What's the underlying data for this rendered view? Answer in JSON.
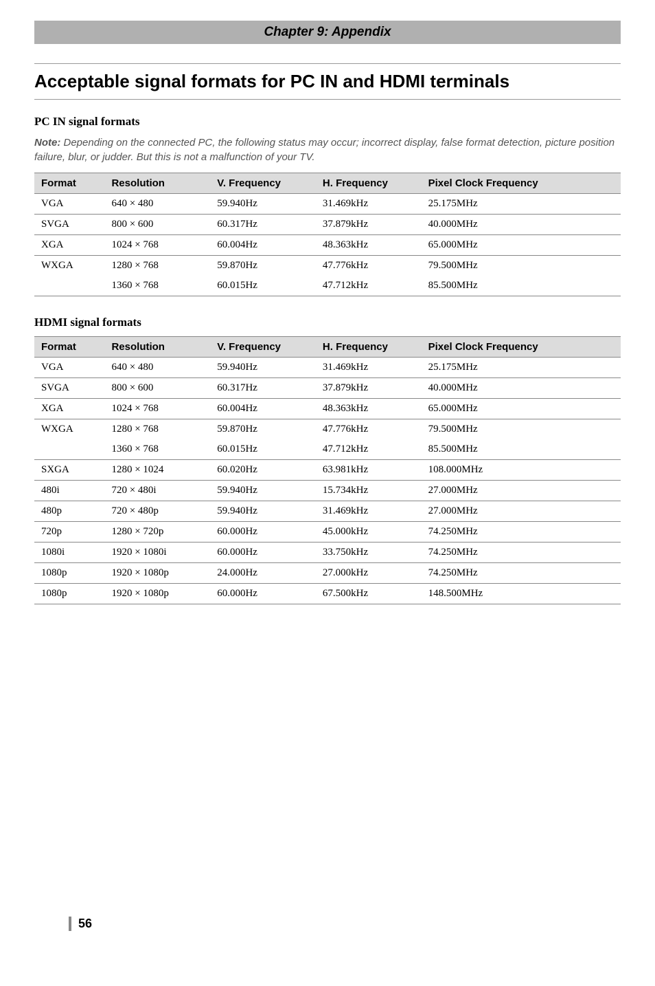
{
  "chapter": "Chapter 9: Appendix",
  "title": "Acceptable signal formats for PC IN and HDMI terminals",
  "pcin": {
    "heading": "PC IN signal formats",
    "note_label": "Note:",
    "note_text": " Depending on the connected PC, the following status may occur; incorrect display, false format detection, picture position failure, blur, or judder. But this is not a malfunction of your TV.",
    "cols": {
      "format": "Format",
      "res": "Resolution",
      "vf": "V. Frequency",
      "hf": "H. Frequency",
      "pcf": "Pixel Clock Frequency"
    },
    "rows": [
      {
        "format": "VGA",
        "res": "640 × 480",
        "vf": "59.940Hz",
        "hf": "31.469kHz",
        "pcf": "25.175MHz"
      },
      {
        "format": "SVGA",
        "res": "800 × 600",
        "vf": "60.317Hz",
        "hf": "37.879kHz",
        "pcf": "40.000MHz"
      },
      {
        "format": "XGA",
        "res": "1024 × 768",
        "vf": "60.004Hz",
        "hf": "48.363kHz",
        "pcf": "65.000MHz"
      },
      {
        "format": "WXGA",
        "res": "1280 × 768",
        "vf": "59.870Hz",
        "hf": "47.776kHz",
        "pcf": "79.500MHz"
      },
      {
        "format": "",
        "res": "1360 × 768",
        "vf": "60.015Hz",
        "hf": "47.712kHz",
        "pcf": "85.500MHz"
      }
    ]
  },
  "hdmi": {
    "heading": "HDMI signal formats",
    "cols": {
      "format": "Format",
      "res": "Resolution",
      "vf": "V. Frequency",
      "hf": "H. Frequency",
      "pcf": "Pixel Clock Frequency"
    },
    "rows": [
      {
        "format": "VGA",
        "res": "640 × 480",
        "vf": "59.940Hz",
        "hf": "31.469kHz",
        "pcf": "25.175MHz"
      },
      {
        "format": "SVGA",
        "res": "800 × 600",
        "vf": "60.317Hz",
        "hf": "37.879kHz",
        "pcf": "40.000MHz"
      },
      {
        "format": "XGA",
        "res": "1024 × 768",
        "vf": "60.004Hz",
        "hf": "48.363kHz",
        "pcf": "65.000MHz"
      },
      {
        "format": "WXGA",
        "res": "1280 × 768",
        "vf": "59.870Hz",
        "hf": "47.776kHz",
        "pcf": "79.500MHz"
      },
      {
        "format": "",
        "res": "1360 × 768",
        "vf": "60.015Hz",
        "hf": "47.712kHz",
        "pcf": "85.500MHz"
      },
      {
        "format": "SXGA",
        "res": "1280 × 1024",
        "vf": "60.020Hz",
        "hf": "63.981kHz",
        "pcf": "108.000MHz"
      },
      {
        "format": "480i",
        "res": "720 × 480i",
        "vf": "59.940Hz",
        "hf": "15.734kHz",
        "pcf": "27.000MHz"
      },
      {
        "format": "480p",
        "res": "720 × 480p",
        "vf": "59.940Hz",
        "hf": "31.469kHz",
        "pcf": "27.000MHz"
      },
      {
        "format": "720p",
        "res": "1280 × 720p",
        "vf": "60.000Hz",
        "hf": "45.000kHz",
        "pcf": "74.250MHz"
      },
      {
        "format": "1080i",
        "res": "1920 × 1080i",
        "vf": "60.000Hz",
        "hf": "33.750kHz",
        "pcf": "74.250MHz"
      },
      {
        "format": "1080p",
        "res": "1920 × 1080p",
        "vf": "24.000Hz",
        "hf": "27.000kHz",
        "pcf": "74.250MHz"
      },
      {
        "format": "1080p",
        "res": "1920 × 1080p",
        "vf": "60.000Hz",
        "hf": "67.500kHz",
        "pcf": "148.500MHz"
      }
    ]
  },
  "page_number": "56"
}
